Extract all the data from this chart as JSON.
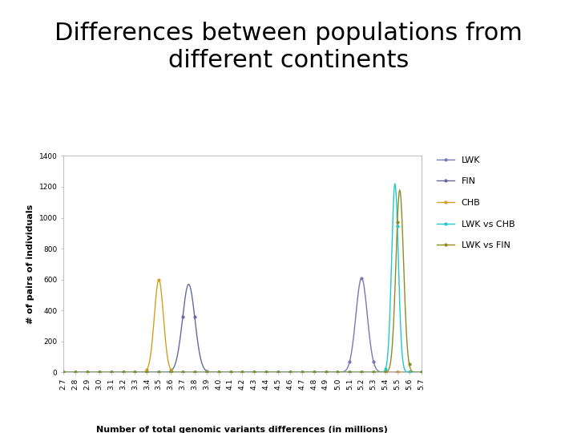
{
  "title": "Differences between populations from\ndifferent continents",
  "title_fontsize": 22,
  "xlabel": "Number of total genomic variants differences (in millions)",
  "ylabel": "# of pairs of individuals",
  "xlim": [
    2.7,
    5.7
  ],
  "ylim": [
    0,
    1400
  ],
  "yticks": [
    0,
    200,
    400,
    600,
    800,
    1000,
    1200,
    1400
  ],
  "xtick_step": 0.1,
  "series": [
    {
      "label": "LWK",
      "color": "#7878B4",
      "mean": 5.2,
      "std": 0.048,
      "peak": 610,
      "marker": "o",
      "markersize": 2.0
    },
    {
      "label": "FIN",
      "color": "#6868A0",
      "mean": 3.75,
      "std": 0.052,
      "peak": 570,
      "marker": "o",
      "markersize": 2.0
    },
    {
      "label": "CHB",
      "color": "#D4A020",
      "mean": 3.5,
      "std": 0.038,
      "peak": 600,
      "marker": "o",
      "markersize": 2.0
    },
    {
      "label": "LWK vs CHB",
      "color": "#20C8C8",
      "mean": 5.48,
      "std": 0.028,
      "peak": 1220,
      "marker": "o",
      "markersize": 2.0
    },
    {
      "label": "LWK vs FIN",
      "color": "#8C8C20",
      "mean": 5.52,
      "std": 0.032,
      "peak": 1180,
      "marker": "o",
      "markersize": 2.0
    }
  ],
  "background_color": "#FFFFFF",
  "plot_bg_color": "#FFFFFF",
  "box_color": "#C0C0C8",
  "legend_fontsize": 8,
  "axis_fontsize": 8,
  "tick_fontsize": 6.5,
  "xlabel_fontsize": 8
}
